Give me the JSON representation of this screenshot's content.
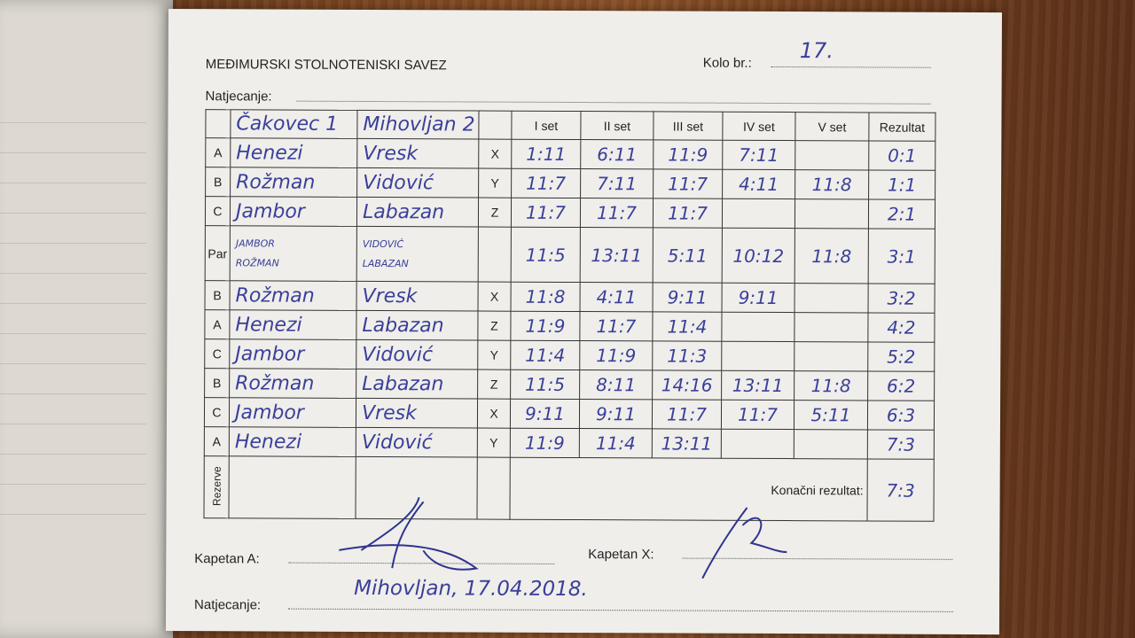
{
  "header": {
    "title": "MEĐIMURSKI STOLNOTENISKI SAVEZ",
    "kolo_label": "Kolo br.:",
    "kolo_value": "17.",
    "natjecanje_label": "Natjecanje:"
  },
  "table": {
    "columns": [
      "",
      "Čakovec 1",
      "Mihovljan 2",
      "",
      "I set",
      "II set",
      "III set",
      "IV set",
      "V set",
      "Rezultat"
    ],
    "rows": [
      {
        "p1": "A",
        "n1": "Henezi",
        "p2": "X",
        "n2": "Vresk",
        "sets": [
          "1:11",
          "6:11",
          "11:9",
          "7:11",
          ""
        ],
        "result": "0:1"
      },
      {
        "p1": "B",
        "n1": "Rožman",
        "p2": "Y",
        "n2": "Vidović",
        "sets": [
          "11:7",
          "7:11",
          "11:7",
          "4:11",
          "11:8"
        ],
        "result": "1:1"
      },
      {
        "p1": "C",
        "n1": "Jambor",
        "p2": "Z",
        "n2": "Labazan",
        "sets": [
          "11:7",
          "11:7",
          "11:7",
          "",
          ""
        ],
        "result": "2:1"
      },
      {
        "p1": "Par",
        "n1": "JAMBOR / ROŽMAN",
        "p2": "",
        "n2": "VIDOVIĆ / LABAZAN",
        "sets": [
          "11:5",
          "13:11",
          "5:11",
          "10:12",
          "11:8"
        ],
        "result": "3:1",
        "pair": true
      },
      {
        "p1": "B",
        "n1": "Rožman",
        "p2": "X",
        "n2": "Vresk",
        "sets": [
          "11:8",
          "4:11",
          "9:11",
          "9:11",
          ""
        ],
        "result": "3:2"
      },
      {
        "p1": "A",
        "n1": "Henezi",
        "p2": "Z",
        "n2": "Labazan",
        "sets": [
          "11:9",
          "11:7",
          "11:4",
          "",
          ""
        ],
        "result": "4:2"
      },
      {
        "p1": "C",
        "n1": "Jambor",
        "p2": "Y",
        "n2": "Vidović",
        "sets": [
          "11:4",
          "11:9",
          "11:3",
          "",
          ""
        ],
        "result": "5:2"
      },
      {
        "p1": "B",
        "n1": "Rožman",
        "p2": "Z",
        "n2": "Labazan",
        "sets": [
          "11:5",
          "8:11",
          "14:16",
          "13:11",
          "11:8"
        ],
        "result": "6:2"
      },
      {
        "p1": "C",
        "n1": "Jambor",
        "p2": "X",
        "n2": "Vresk",
        "sets": [
          "9:11",
          "9:11",
          "11:7",
          "11:7",
          "5:11"
        ],
        "result": "6:3"
      },
      {
        "p1": "A",
        "n1": "Henezi",
        "p2": "Y",
        "n2": "Vidović",
        "sets": [
          "11:9",
          "11:4",
          "13:11",
          "",
          ""
        ],
        "result": "7:3"
      }
    ],
    "rezerve_label": "Rezerve",
    "final_label": "Konačni rezultat:",
    "final_value": "7:3"
  },
  "footer": {
    "kapetan_a_label": "Kapetan A:",
    "kapetan_x_label": "Kapetan X:",
    "natjecanje_label": "Natjecanje:",
    "natjecanje_value": "Mihovljan, 17.04.2018."
  }
}
